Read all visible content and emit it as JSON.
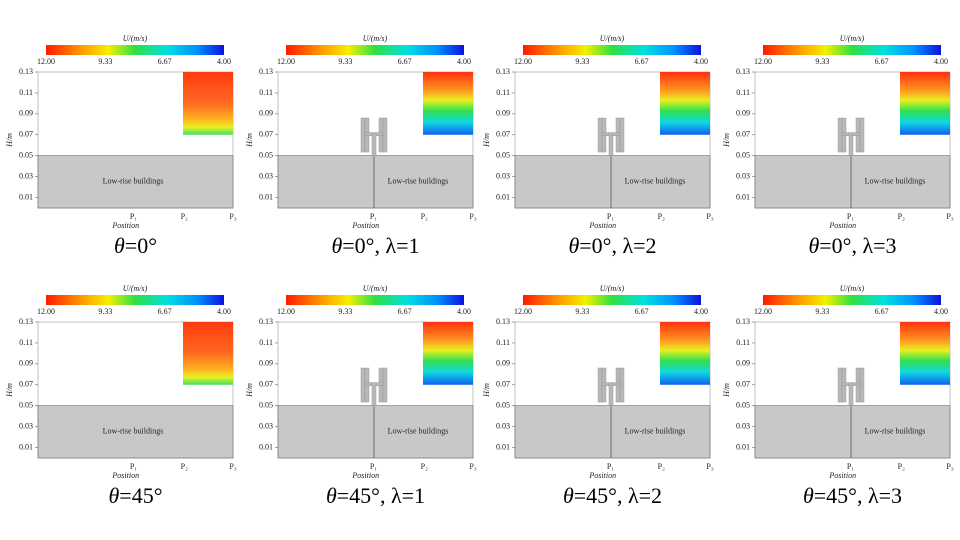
{
  "panels": [
    {
      "colorbar_title": "U/(m/s)",
      "colorbar_ticks": [
        "12.00",
        "9.33",
        "6.67",
        "4.00"
      ],
      "y_label": "H/m",
      "y_ticks": [
        "0.13",
        "0.11",
        "0.09",
        "0.07",
        "0.05",
        "0.03",
        "0.01"
      ],
      "x_label": "Position",
      "x_ticks": [
        "P₁",
        "P₂",
        "P₃"
      ],
      "region_label": "Low-rise buildings",
      "caption": {
        "symbol": "θ",
        "text": "=0°"
      }
    },
    {
      "colorbar_title": "U/(m/s)",
      "colorbar_ticks": [
        "12.00",
        "9.33",
        "6.67",
        "4.00"
      ],
      "y_label": "H/m",
      "y_ticks": [
        "0.13",
        "0.11",
        "0.09",
        "0.07",
        "0.05",
        "0.03",
        "0.01"
      ],
      "x_label": "Position",
      "x_ticks": [
        "P₁",
        "P₂",
        "P₃"
      ],
      "region_label": "Low-rise buildings",
      "caption": {
        "symbol": "θ",
        "text": "=0°, λ=1"
      }
    },
    {
      "colorbar_title": "U/(m/s)",
      "colorbar_ticks": [
        "12.00",
        "9.33",
        "6.67",
        "4.00"
      ],
      "y_label": "H/m",
      "y_ticks": [
        "0.13",
        "0.11",
        "0.09",
        "0.07",
        "0.05",
        "0.03",
        "0.01"
      ],
      "x_label": "Position",
      "x_ticks": [
        "P₁",
        "P₂",
        "P₃"
      ],
      "region_label": "Low-rise buildings",
      "caption": {
        "symbol": "θ",
        "text": "=0°, λ=2"
      }
    },
    {
      "colorbar_title": "U/(m/s)",
      "colorbar_ticks": [
        "12.00",
        "9.33",
        "6.67",
        "4.00"
      ],
      "y_label": "H/m",
      "y_ticks": [
        "0.13",
        "0.11",
        "0.09",
        "0.07",
        "0.05",
        "0.03",
        "0.01"
      ],
      "x_label": "Position",
      "x_ticks": [
        "P₁",
        "P₂",
        "P₃"
      ],
      "region_label": "Low-rise buildings",
      "caption": {
        "symbol": "θ",
        "text": "=0°, λ=3"
      }
    },
    {
      "colorbar_title": "U/(m/s)",
      "colorbar_ticks": [
        "12.00",
        "9.33",
        "6.67",
        "4.00"
      ],
      "y_label": "H/m",
      "y_ticks": [
        "0.13",
        "0.11",
        "0.09",
        "0.07",
        "0.05",
        "0.03",
        "0.01"
      ],
      "x_label": "Position",
      "x_ticks": [
        "P₁",
        "P₂",
        "P₃"
      ],
      "region_label": "Low-rise buildings",
      "caption": {
        "symbol": "θ",
        "text": "=45°"
      }
    },
    {
      "colorbar_title": "U/(m/s)",
      "colorbar_ticks": [
        "12.00",
        "9.33",
        "6.67",
        "4.00"
      ],
      "y_label": "H/m",
      "y_ticks": [
        "0.13",
        "0.11",
        "0.09",
        "0.07",
        "0.05",
        "0.03",
        "0.01"
      ],
      "x_label": "Position",
      "x_ticks": [
        "P₁",
        "P₂",
        "P₃"
      ],
      "region_label": "Low-rise buildings",
      "caption": {
        "symbol": "θ",
        "text": "=45°, λ=1"
      }
    },
    {
      "colorbar_title": "U/(m/s)",
      "colorbar_ticks": [
        "12.00",
        "9.33",
        "6.67",
        "4.00"
      ],
      "y_label": "H/m",
      "y_ticks": [
        "0.13",
        "0.11",
        "0.09",
        "0.07",
        "0.05",
        "0.03",
        "0.01"
      ],
      "x_label": "Position",
      "x_ticks": [
        "P₁",
        "P₂",
        "P₃"
      ],
      "region_label": "Low-rise buildings",
      "caption": {
        "symbol": "θ",
        "text": "=45°, λ=2"
      }
    },
    {
      "colorbar_title": "U/(m/s)",
      "colorbar_ticks": [
        "12.00",
        "9.33",
        "6.67",
        "4.00"
      ],
      "y_label": "H/m",
      "y_ticks": [
        "0.13",
        "0.11",
        "0.09",
        "0.07",
        "0.05",
        "0.03",
        "0.01"
      ],
      "x_label": "Position",
      "x_ticks": [
        "P₁",
        "P₂",
        "P₃"
      ],
      "region_label": "Low-rise buildings",
      "caption": {
        "symbol": "θ",
        "text": "=45°, λ=3"
      }
    }
  ]
}
